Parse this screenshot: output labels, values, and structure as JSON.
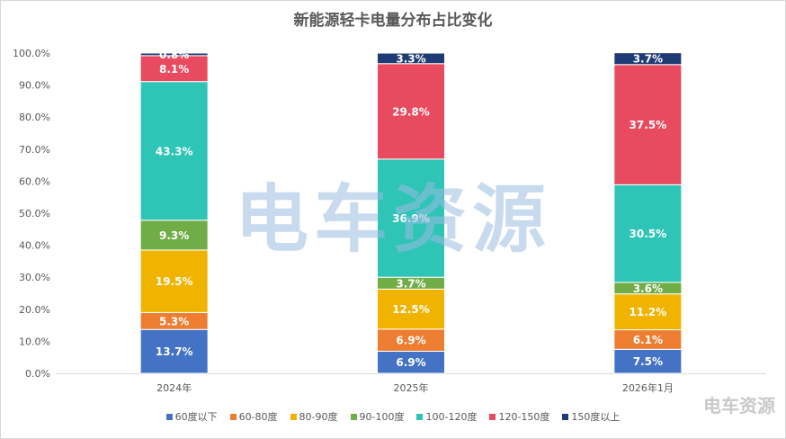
{
  "chart_data": {
    "type": "bar",
    "stacked": true,
    "percent": true,
    "title": "新能源轻卡电量分布占比变化",
    "xlabel": "",
    "ylabel": "",
    "ylim": [
      0,
      100
    ],
    "y_ticks": [
      "0.0%",
      "10.0%",
      "20.0%",
      "30.0%",
      "40.0%",
      "50.0%",
      "60.0%",
      "70.0%",
      "80.0%",
      "90.0%",
      "100.0%"
    ],
    "categories": [
      "2024年",
      "2025年",
      "2026年1月"
    ],
    "series": [
      {
        "name": "60度以下",
        "color": "#4472c4",
        "values": [
          13.7,
          6.9,
          7.5
        ],
        "labels": [
          "13.7%",
          "6.9%",
          "7.5%"
        ]
      },
      {
        "name": "60-80度",
        "color": "#ed7d31",
        "values": [
          5.3,
          6.9,
          6.1
        ],
        "labels": [
          "5.3%",
          "6.9%",
          "6.1%"
        ]
      },
      {
        "name": "80-90度",
        "color": "#f0b400",
        "values": [
          19.5,
          12.5,
          11.2
        ],
        "labels": [
          "19.5%",
          "12.5%",
          "11.2%"
        ]
      },
      {
        "name": "90-100度",
        "color": "#70ad47",
        "values": [
          9.3,
          3.7,
          3.6
        ],
        "labels": [
          "9.3%",
          "3.7%",
          "3.6%"
        ]
      },
      {
        "name": "100-120度",
        "color": "#2ec4b6",
        "values": [
          43.3,
          36.9,
          30.5
        ],
        "labels": [
          "43.3%",
          "36.9%",
          "30.5%"
        ]
      },
      {
        "name": "120-150度",
        "color": "#e84a5f",
        "values": [
          8.1,
          29.8,
          37.5
        ],
        "labels": [
          "8.1%",
          "29.8%",
          "37.5%"
        ]
      },
      {
        "name": "150度以上",
        "color": "#1f3b73",
        "values": [
          0.8,
          3.3,
          3.7
        ],
        "labels": [
          "0.8%",
          "3.3%",
          "3.7%"
        ]
      }
    ],
    "legend_position": "bottom",
    "grid": true
  },
  "watermark": {
    "text": "电车资源",
    "small_text": "电车资源"
  }
}
